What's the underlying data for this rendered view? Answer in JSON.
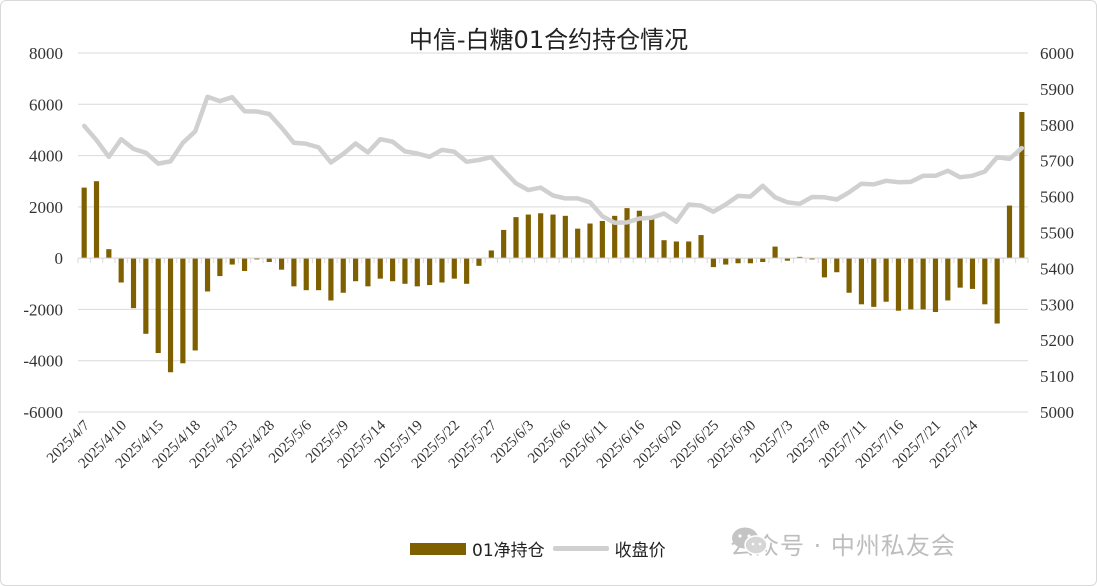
{
  "chart_data": {
    "type": "bar+line",
    "title": "中信-白糖01合约持仓情况",
    "y_left": {
      "min": -6000,
      "max": 8000,
      "ticks": [
        "-6000",
        "-4000",
        "-2000",
        "0",
        "2000",
        "4000",
        "6000",
        "8000"
      ]
    },
    "y_right": {
      "min": 5000,
      "max": 6000,
      "ticks": [
        "5000",
        "5100",
        "5200",
        "5300",
        "5400",
        "5500",
        "5600",
        "5700",
        "5800",
        "5900",
        "6000"
      ]
    },
    "x_labels": [
      "2025/4/7",
      "2025/4/10",
      "2025/4/15",
      "2025/4/18",
      "2025/4/23",
      "2025/4/28",
      "2025/5/6",
      "2025/5/9",
      "2025/5/14",
      "2025/5/19",
      "2025/5/22",
      "2025/5/27",
      "2025/6/3",
      "2025/6/6",
      "2025/6/11",
      "2025/6/16",
      "2025/6/20",
      "2025/6/25",
      "2025/6/30",
      "2025/7/3",
      "2025/7/8",
      "2025/7/11",
      "2025/7/16",
      "2025/7/21",
      "2025/7/24"
    ],
    "series": [
      {
        "name": "01净持仓",
        "kind": "bar",
        "color": "#7f6000",
        "axis": "left",
        "values": [
          2750,
          3000,
          350,
          -950,
          -1950,
          -2950,
          -3700,
          -4450,
          -4100,
          -3600,
          -1300,
          -700,
          -250,
          -500,
          -50,
          -150,
          -450,
          -1100,
          -1250,
          -1250,
          -1650,
          -1350,
          -900,
          -1100,
          -800,
          -900,
          -1000,
          -1100,
          -1050,
          -950,
          -800,
          -1000,
          -300,
          300,
          1100,
          1600,
          1700,
          1750,
          1700,
          1650,
          1150,
          1350,
          1450,
          1650,
          1950,
          1850,
          1600,
          700,
          650,
          650,
          900,
          -350,
          -250,
          -200,
          -200,
          -150,
          450,
          -100,
          50,
          -50,
          -750,
          -550,
          -1350,
          -1800,
          -1900,
          -1700,
          -2050,
          -2000,
          -2000,
          -2100,
          -1650,
          -1150,
          -1200,
          -1800,
          -2550,
          2050,
          5700
        ]
      },
      {
        "name": "收盘价",
        "kind": "line",
        "color": "#d0d0d0",
        "axis": "right",
        "values": [
          5797,
          5757,
          5711,
          5760,
          5733,
          5722,
          5692,
          5698,
          5750,
          5782,
          5878,
          5866,
          5877,
          5838,
          5837,
          5830,
          5792,
          5750,
          5747,
          5737,
          5695,
          5719,
          5748,
          5723,
          5760,
          5753,
          5726,
          5720,
          5711,
          5730,
          5725,
          5697,
          5702,
          5710,
          5673,
          5637,
          5618,
          5625,
          5603,
          5595,
          5595,
          5584,
          5545,
          5527,
          5528,
          5539,
          5541,
          5553,
          5530,
          5578,
          5575,
          5558,
          5578,
          5602,
          5600,
          5630,
          5598,
          5584,
          5580,
          5599,
          5598,
          5592,
          5612,
          5636,
          5634,
          5644,
          5640,
          5641,
          5658,
          5658,
          5672,
          5654,
          5658,
          5670,
          5710,
          5705,
          5735
        ]
      }
    ],
    "legend": {
      "position": "bottom-center",
      "labels": [
        "01净持仓",
        "收盘价"
      ]
    },
    "grid": true
  },
  "watermark": {
    "text": "公众号 · 中州私友会",
    "icon": "wechat-icon"
  }
}
